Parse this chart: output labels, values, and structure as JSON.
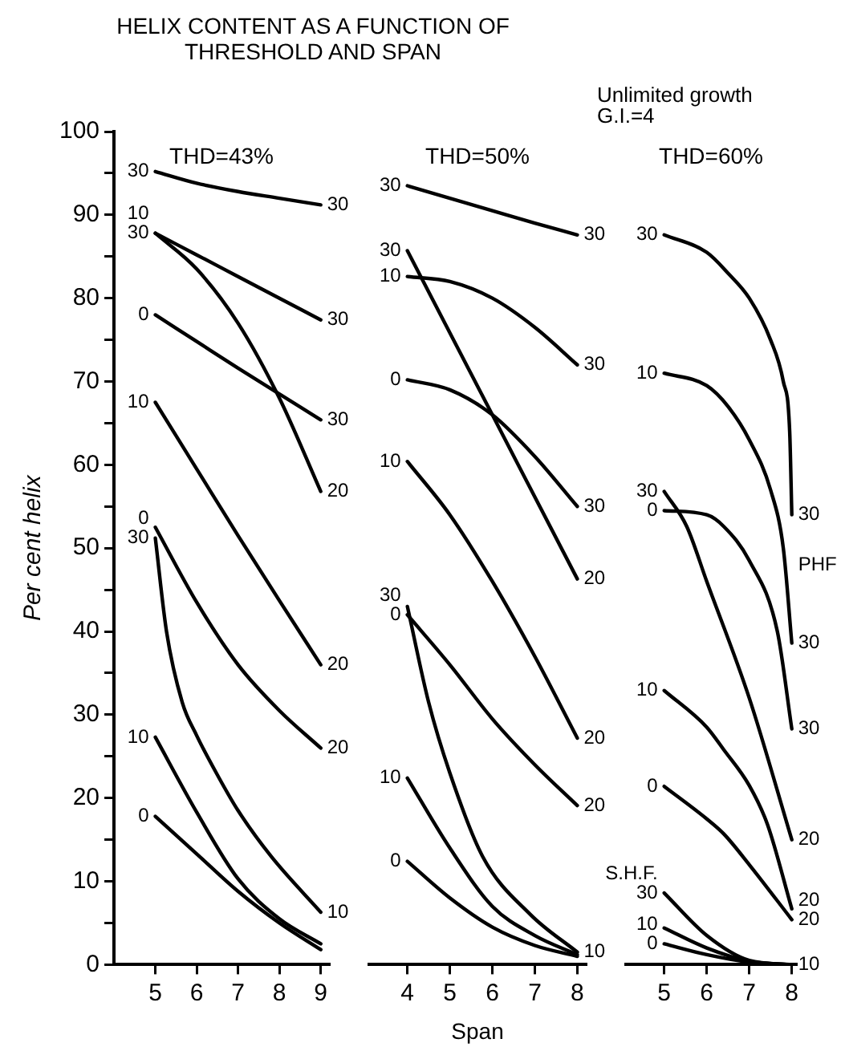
{
  "chart_data": [
    {
      "type": "line",
      "title": "HELIX CONTENT AS A FUNCTION OF THRESHOLD AND SPAN",
      "subtitle": "THD=43%",
      "ylabel": "Per cent helix",
      "marker": "none",
      "xlim": [
        4,
        9.2
      ],
      "xticks": [
        5,
        6,
        7,
        8,
        9
      ],
      "ylim": [
        0,
        100
      ],
      "yticks": [
        0,
        {
          "value": 5,
          "label": null
        },
        10,
        {
          "value": 15,
          "label": null
        },
        20,
        {
          "value": 25,
          "label": null
        },
        30,
        {
          "value": 35,
          "label": null
        },
        40,
        {
          "value": 45,
          "label": null
        },
        50,
        {
          "value": 55,
          "label": null
        },
        60,
        {
          "value": 65,
          "label": null
        },
        70,
        {
          "value": 75,
          "label": null
        },
        80,
        {
          "value": 85,
          "label": null
        },
        90,
        {
          "value": 95,
          "label": null
        },
        100
      ],
      "series": [
        {
          "color": "#000000",
          "x": [
            5,
            6,
            7,
            8,
            9
          ],
          "values": [
            95.2,
            93.8,
            92.8,
            92,
            91.2
          ]
        },
        {
          "color": "#000000",
          "x": [
            5,
            6,
            7,
            8,
            9
          ],
          "values": [
            87.8,
            85.2,
            82.6,
            80,
            77.4
          ]
        },
        {
          "color": "#000000",
          "x": [
            5,
            6,
            7,
            8,
            9
          ],
          "values": [
            87.8,
            83.5,
            77,
            68,
            56.8
          ]
        },
        {
          "color": "#000000",
          "x": [
            5,
            6,
            7,
            8,
            9
          ],
          "values": [
            78,
            74.8,
            71.6,
            68.5,
            65.4
          ]
        },
        {
          "color": "#000000",
          "x": [
            5,
            6,
            7,
            8,
            9
          ],
          "values": [
            67.5,
            59.5,
            51.5,
            43.7,
            36
          ]
        },
        {
          "color": "#000000",
          "x": [
            5,
            6,
            7,
            8,
            9
          ],
          "values": [
            52.5,
            43.5,
            36,
            30.5,
            26
          ]
        },
        {
          "color": "#000000",
          "x": [
            5,
            5.27,
            5.65,
            6,
            6.52,
            7,
            7.8,
            9
          ],
          "values": [
            51.2,
            40,
            31.5,
            27.5,
            22.6,
            18.5,
            13,
            6.3
          ]
        },
        {
          "color": "#000000",
          "x": [
            5,
            6,
            7,
            8,
            9
          ],
          "values": [
            27.3,
            18.3,
            10.3,
            5.5,
            2.5
          ]
        },
        {
          "color": "#000000",
          "x": [
            5,
            6,
            7,
            8,
            9
          ],
          "values": [
            17.8,
            13.3,
            8.8,
            5,
            1.8
          ]
        }
      ],
      "annotations": [
        {
          "text": "30",
          "x": 5,
          "y": 95.2
        },
        {
          "text": "10",
          "x": 5,
          "y": 87.8
        },
        {
          "text": "30",
          "x": 5,
          "y": 87.8
        },
        {
          "text": "0",
          "x": 5,
          "y": 78
        },
        {
          "text": "10",
          "x": 5,
          "y": 67.5
        },
        {
          "text": "0",
          "x": 5,
          "y": 52.5
        },
        {
          "text": "30",
          "x": 5,
          "y": 51.2
        },
        {
          "text": "10",
          "x": 5,
          "y": 27.3
        },
        {
          "text": "0",
          "x": 5,
          "y": 17.8
        },
        {
          "text": "30",
          "x": 9,
          "y": 91.2
        },
        {
          "text": "30",
          "x": 9,
          "y": 77.4
        },
        {
          "text": "30",
          "x": 9,
          "y": 65.4
        },
        {
          "text": "20",
          "x": 9,
          "y": 56.8
        },
        {
          "text": "20",
          "x": 9,
          "y": 36
        },
        {
          "text": "20",
          "x": 9,
          "y": 26
        },
        {
          "text": "10",
          "x": 9,
          "y": 6.3
        }
      ]
    },
    {
      "type": "line",
      "subtitle": "THD=50%",
      "xlabel": "Span",
      "marker": "none",
      "tick_labels": "x",
      "xlim": [
        3.1,
        8.2
      ],
      "xticks": [
        4,
        5,
        6,
        7,
        8
      ],
      "ylim": [
        0,
        100
      ],
      "series": [
        {
          "color": "#000000",
          "x": [
            4,
            5,
            6,
            7,
            8
          ],
          "values": [
            93.5,
            92,
            90.5,
            89,
            87.6
          ]
        },
        {
          "color": "#000000",
          "x": [
            4,
            6,
            8
          ],
          "values": [
            85.7,
            66,
            46.3
          ]
        },
        {
          "color": "#000000",
          "x": [
            4,
            5,
            6,
            7,
            8
          ],
          "values": [
            82.6,
            82,
            80,
            76.5,
            72
          ]
        },
        {
          "color": "#000000",
          "x": [
            4,
            5,
            6,
            7,
            8
          ],
          "values": [
            70.2,
            69,
            66,
            61,
            55
          ]
        },
        {
          "color": "#000000",
          "x": [
            4,
            5,
            6,
            7,
            8
          ],
          "values": [
            60.4,
            54,
            46,
            37,
            27.2
          ]
        },
        {
          "color": "#000000",
          "x": [
            4,
            4.5,
            5,
            5.77,
            6.9,
            8
          ],
          "values": [
            43,
            31.5,
            23,
            13,
            6,
            1.5
          ]
        },
        {
          "color": "#000000",
          "x": [
            4,
            5,
            6,
            7,
            8
          ],
          "values": [
            42,
            36,
            29.5,
            24,
            19.1
          ]
        },
        {
          "color": "#000000",
          "x": [
            4,
            5,
            6,
            7,
            8
          ],
          "values": [
            22.4,
            14,
            7,
            3.5,
            1.2
          ]
        },
        {
          "color": "#000000",
          "x": [
            4,
            5,
            6,
            7,
            8
          ],
          "values": [
            12.4,
            8,
            4.5,
            2.3,
            1
          ]
        }
      ],
      "annotations": [
        {
          "text": "30",
          "x": 4,
          "y": 93.5
        },
        {
          "text": "30",
          "x": 4,
          "y": 85.7
        },
        {
          "text": "10",
          "x": 4,
          "y": 82.6
        },
        {
          "text": "0",
          "x": 4,
          "y": 70.2
        },
        {
          "text": "10",
          "x": 4,
          "y": 60.4
        },
        {
          "text": "30",
          "x": 4,
          "y": 43
        },
        {
          "text": "0",
          "x": 4,
          "y": 42
        },
        {
          "text": "10",
          "x": 4,
          "y": 22.4
        },
        {
          "text": "0",
          "x": 4,
          "y": 12.4
        },
        {
          "text": "30",
          "x": 8,
          "y": 87.6
        },
        {
          "text": "30",
          "x": 8,
          "y": 72
        },
        {
          "text": "30",
          "x": 8,
          "y": 55
        },
        {
          "text": "20",
          "x": 8,
          "y": 46.3
        },
        {
          "text": "20",
          "x": 8,
          "y": 27.2
        },
        {
          "text": "20",
          "x": 8,
          "y": 19.1
        },
        {
          "text": "10",
          "x": 8,
          "y": 1.5
        }
      ]
    },
    {
      "type": "line",
      "subtitle": "THD=60%",
      "marker": "none",
      "tick_labels": "x",
      "xlim": [
        4.1,
        8.1
      ],
      "xticks": [
        5,
        6,
        7,
        8
      ],
      "ylim": [
        0,
        100
      ],
      "series": [
        {
          "color": "#000000",
          "x": [
            5,
            6,
            6.5,
            7,
            7.5,
            7.8,
            7.95,
            8
          ],
          "values": [
            87.6,
            85.5,
            83,
            80,
            75,
            70,
            64,
            54
          ]
        },
        {
          "color": "#000000",
          "x": [
            5,
            6,
            6.5,
            7,
            7.5,
            7.8,
            8
          ],
          "values": [
            71,
            69.5,
            67,
            63,
            57,
            50,
            38.6
          ]
        },
        {
          "color": "#000000",
          "x": [
            5,
            5.53,
            6,
            7,
            8
          ],
          "values": [
            56.8,
            52.6,
            46,
            32,
            15
          ]
        },
        {
          "color": "#000000",
          "x": [
            5,
            6,
            6.4,
            7,
            7.66,
            8
          ],
          "values": [
            54.5,
            54,
            52.6,
            48.5,
            40,
            28.3
          ]
        },
        {
          "color": "#000000",
          "x": [
            5,
            6,
            6.4,
            7,
            7.43,
            8
          ],
          "values": [
            32.9,
            28.5,
            25.8,
            21.5,
            16.8,
            6.7
          ]
        },
        {
          "color": "#000000",
          "x": [
            5,
            6,
            6.4,
            7,
            8
          ],
          "values": [
            21.4,
            17.5,
            15.7,
            12,
            5.4
          ]
        },
        {
          "color": "#000000",
          "x": [
            5,
            6,
            7,
            8
          ],
          "values": [
            8.6,
            3.5,
            0.5,
            0
          ]
        },
        {
          "color": "#000000",
          "x": [
            5,
            6,
            7,
            8
          ],
          "values": [
            4.4,
            2,
            0.4,
            0
          ]
        },
        {
          "color": "#000000",
          "x": [
            5,
            6,
            7,
            8
          ],
          "values": [
            2.5,
            1.2,
            0.3,
            0
          ]
        }
      ],
      "annotations": [
        "Unlimited growth",
        "G.I.=4",
        {
          "text": "30",
          "x": 5,
          "y": 87.6
        },
        {
          "text": "10",
          "x": 5,
          "y": 71
        },
        {
          "text": "30",
          "x": 5,
          "y": 56.8
        },
        {
          "text": "0",
          "x": 5,
          "y": 54.5
        },
        {
          "text": "10",
          "x": 5,
          "y": 32.9
        },
        {
          "text": "0",
          "x": 5,
          "y": 21.4
        },
        {
          "text": "S.H.F.",
          "x": 5,
          "y": 8.6
        },
        {
          "text": "30",
          "x": 5,
          "y": 8.6
        },
        {
          "text": "10",
          "x": 5,
          "y": 4.4
        },
        {
          "text": "0",
          "x": 5,
          "y": 2.5
        },
        {
          "text": "30",
          "x": 8,
          "y": 54
        },
        {
          "text": "PHF",
          "x": 8,
          "y": 48
        },
        {
          "text": "30",
          "x": 8,
          "y": 38.6
        },
        {
          "text": "30",
          "x": 8,
          "y": 28.3
        },
        {
          "text": "20",
          "x": 8,
          "y": 15
        },
        {
          "text": "20",
          "x": 8,
          "y": 6.7
        },
        {
          "text": "20",
          "x": 8,
          "y": 5.4
        },
        {
          "text": "10",
          "x": 8,
          "y": 0
        }
      ]
    }
  ]
}
